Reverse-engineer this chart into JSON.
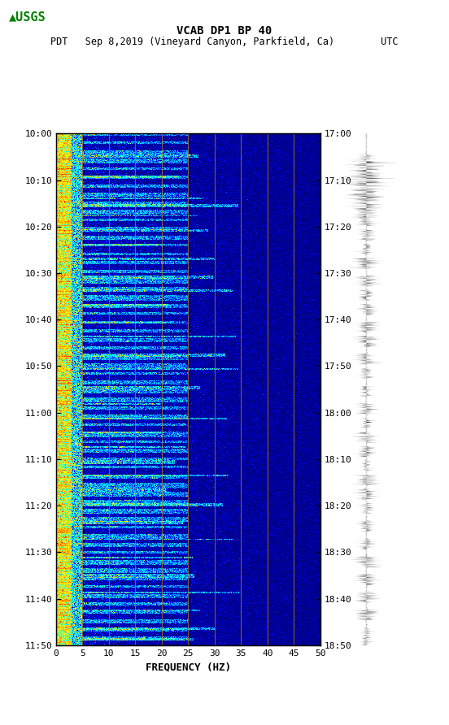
{
  "title_line1": "VCAB DP1 BP 40",
  "title_line2": "PDT   Sep 8,2019 (Vineyard Canyon, Parkfield, Ca)        UTC",
  "xlabel": "FREQUENCY (HZ)",
  "freq_min": 0,
  "freq_max": 50,
  "freq_ticks": [
    0,
    5,
    10,
    15,
    20,
    25,
    30,
    35,
    40,
    45,
    50
  ],
  "time_labels_left": [
    "10:00",
    "10:10",
    "10:20",
    "10:30",
    "10:40",
    "10:50",
    "11:00",
    "11:10",
    "11:20",
    "11:30",
    "11:40",
    "11:50"
  ],
  "time_labels_right": [
    "17:00",
    "17:10",
    "17:20",
    "17:30",
    "17:40",
    "17:50",
    "18:00",
    "18:10",
    "18:20",
    "18:30",
    "18:40",
    "18:50"
  ],
  "n_time": 720,
  "n_freq": 500,
  "background_color": "#ffffff",
  "grid_color": "#b8860b",
  "grid_linewidth": 0.8,
  "vertical_lines_freq": [
    5,
    10,
    15,
    20,
    25,
    30,
    35,
    40,
    45
  ],
  "spectrogram_seed": 42,
  "waveform_seed": 123
}
